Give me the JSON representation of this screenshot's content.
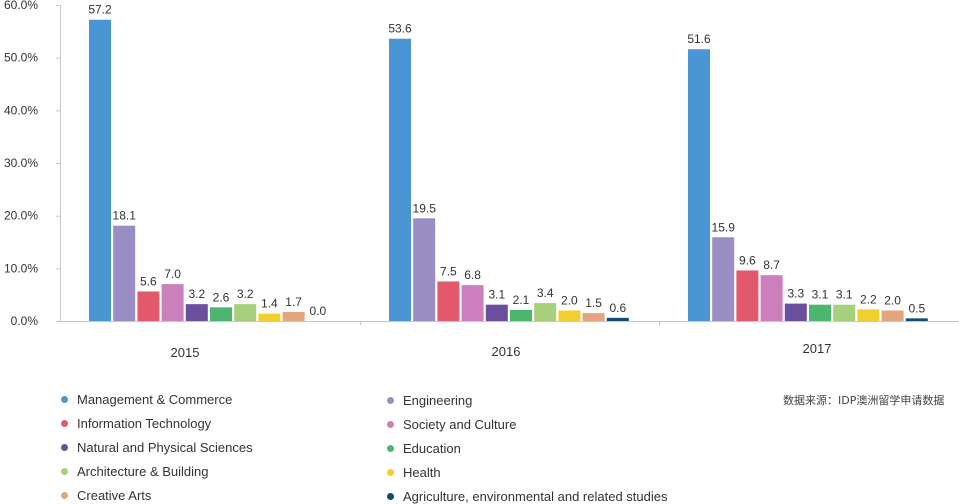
{
  "chart_data": {
    "type": "bar",
    "categories": [
      "2015",
      "2016",
      "2017"
    ],
    "yticks": [
      "0.0%",
      "10.0%",
      "20.0%",
      "30.0%",
      "40.0%",
      "50.0%",
      "60.0%"
    ],
    "ylim": [
      0,
      60
    ],
    "grid": false,
    "legend_position": "bottom",
    "series": [
      {
        "name": "Management & Commerce",
        "color": "#4A96D4",
        "values": [
          57.2,
          53.6,
          51.6
        ],
        "labels": [
          "57.2",
          "53.6",
          "51.6"
        ]
      },
      {
        "name": "Engineering",
        "color": "#9A8DC4",
        "values": [
          18.1,
          19.5,
          15.9
        ],
        "labels": [
          "18.1",
          "19.5",
          "15.9"
        ]
      },
      {
        "name": "Information Technology",
        "color": "#E2596B",
        "values": [
          5.6,
          7.5,
          9.6
        ],
        "labels": [
          "5.6",
          "7.5",
          "9.6"
        ]
      },
      {
        "name": "Society and Culture",
        "color": "#CC7FBD",
        "values": [
          7.0,
          6.8,
          8.7
        ],
        "labels": [
          "7.0",
          "6.8",
          "8.7"
        ]
      },
      {
        "name": "Natural and Physical Sciences",
        "color": "#6A4F9F",
        "values": [
          3.2,
          3.1,
          3.3
        ],
        "labels": [
          "3.2",
          "3.1",
          "3.3"
        ]
      },
      {
        "name": "Education",
        "color": "#4DB66E",
        "values": [
          2.6,
          2.1,
          3.1
        ],
        "labels": [
          "2.6",
          "2.1",
          "3.1"
        ]
      },
      {
        "name": "Architecture & Building",
        "color": "#A6D07C",
        "values": [
          3.2,
          3.4,
          3.1
        ],
        "labels": [
          "3.2",
          "3.4",
          "3.1"
        ]
      },
      {
        "name": "Health",
        "color": "#F2CF2F",
        "values": [
          1.4,
          2.0,
          2.2
        ],
        "labels": [
          "1.4",
          "2.0",
          "2.2"
        ]
      },
      {
        "name": "Creative Arts",
        "color": "#E3A57E",
        "values": [
          1.7,
          1.5,
          2.0
        ],
        "labels": [
          "1.7",
          "1.5",
          "2.0"
        ]
      },
      {
        "name": "Agriculture, environmental and related studies",
        "color": "#0E4C75",
        "values": [
          0.0,
          0.6,
          0.5
        ],
        "labels": [
          "0.0",
          "0.6",
          "0.5"
        ]
      }
    ]
  },
  "source_note": "数据来源：IDP澳洲留学申请数据"
}
